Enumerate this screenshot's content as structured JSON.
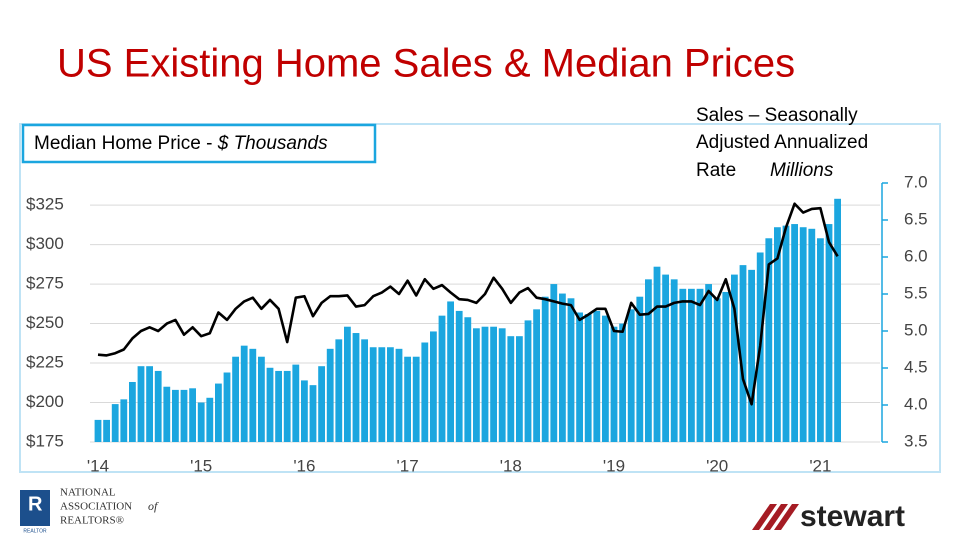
{
  "chart_data": {
    "type": "bar",
    "title": "US Existing Home Sales & Median Prices",
    "y_axis_title": [
      "Median Home Price - ",
      "$ Thousands"
    ],
    "y2_axis_title": [
      "Sales – Seasonally",
      "Adjusted Annualized",
      "Rate",
      "Millions"
    ],
    "categories": [
      "'14",
      null,
      null,
      null,
      null,
      null,
      null,
      null,
      null,
      null,
      null,
      null,
      "'15",
      null,
      null,
      null,
      null,
      null,
      null,
      null,
      null,
      null,
      null,
      null,
      "'16",
      null,
      null,
      null,
      null,
      null,
      null,
      null,
      null,
      null,
      null,
      null,
      "'17",
      null,
      null,
      null,
      null,
      null,
      null,
      null,
      null,
      null,
      null,
      null,
      "'18",
      null,
      null,
      null,
      null,
      null,
      null,
      null,
      null,
      null,
      null,
      null,
      "'19",
      null,
      null,
      null,
      null,
      null,
      null,
      null,
      null,
      null,
      null,
      null,
      "'20",
      null,
      null,
      null,
      null,
      null,
      null,
      null,
      null,
      null,
      null,
      null,
      "'21",
      null,
      null
    ],
    "series": [
      {
        "name": "Median Home Price",
        "type": "bar",
        "axis": "y",
        "color": "#1ba6df",
        "values": [
          189,
          189,
          199,
          202,
          213,
          223,
          223,
          220,
          210,
          208,
          208,
          209,
          200,
          203,
          212,
          219,
          229,
          236,
          234,
          229,
          222,
          220,
          220,
          224,
          214,
          211,
          223,
          234,
          240,
          248,
          244,
          240,
          235,
          235,
          235,
          234,
          229,
          229,
          238,
          245,
          255,
          264,
          258,
          254,
          247,
          248,
          248,
          247,
          242,
          242,
          252,
          259,
          267,
          275,
          269,
          266,
          257,
          256,
          258,
          255,
          248,
          250,
          259,
          267,
          278,
          286,
          281,
          278,
          272,
          272,
          272,
          275,
          266,
          270,
          281,
          287,
          284,
          295,
          304,
          311,
          312,
          313,
          311,
          310,
          304,
          313,
          329
        ]
      },
      {
        "name": "Sales",
        "type": "line",
        "axis": "y2",
        "color": "#000000",
        "values": [
          4.68,
          4.67,
          4.7,
          4.75,
          4.9,
          5.0,
          5.05,
          5.0,
          5.1,
          5.15,
          4.95,
          5.05,
          4.93,
          4.97,
          5.25,
          5.15,
          5.3,
          5.4,
          5.45,
          5.3,
          5.42,
          5.3,
          4.85,
          5.45,
          5.47,
          5.2,
          5.38,
          5.47,
          5.47,
          5.48,
          5.33,
          5.35,
          5.47,
          5.52,
          5.6,
          5.5,
          5.68,
          5.48,
          5.7,
          5.57,
          5.62,
          5.52,
          5.43,
          5.42,
          5.38,
          5.5,
          5.72,
          5.57,
          5.38,
          5.52,
          5.58,
          5.45,
          5.43,
          5.4,
          5.37,
          5.35,
          5.15,
          5.22,
          5.3,
          5.3,
          5.0,
          4.99,
          5.38,
          5.22,
          5.23,
          5.33,
          5.33,
          5.38,
          5.4,
          5.4,
          5.35,
          5.54,
          5.42,
          5.7,
          5.3,
          4.35,
          4.01,
          4.8,
          5.9,
          5.98,
          6.4,
          6.72,
          6.6,
          6.65,
          6.66,
          6.2,
          6.01
        ]
      }
    ],
    "ylim": [
      175,
      339
    ],
    "yticks": [
      {
        "value": 175,
        "label": "$175"
      },
      {
        "value": 200,
        "label": "$200"
      },
      {
        "value": 225,
        "label": "$225"
      },
      {
        "value": 250,
        "label": "$250"
      },
      {
        "value": 275,
        "label": "$275"
      },
      {
        "value": 300,
        "label": "$300"
      },
      {
        "value": 325,
        "label": "$325"
      }
    ],
    "y2lim": [
      3.5,
      7.0
    ],
    "y2ticks": [
      3.5,
      {
        "value": 4,
        "label": "4.0"
      },
      4.5,
      {
        "value": 5,
        "label": "5.0"
      },
      5.5,
      {
        "value": 6,
        "label": "6.0"
      },
      6.5,
      {
        "value": 7,
        "label": "7.0"
      }
    ],
    "grid": true
  },
  "logos": {
    "nar": [
      "NATIONAL",
      "ASSOCIATION",
      "of",
      "REALTORS®"
    ],
    "nar_mark": "REALTOR",
    "stewart": "stewart"
  }
}
